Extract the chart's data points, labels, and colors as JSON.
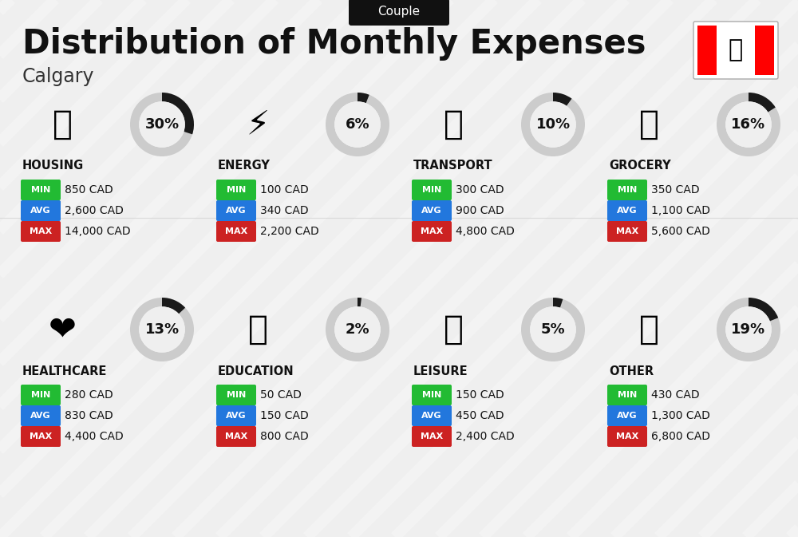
{
  "title": "Distribution of Monthly Expenses",
  "subtitle": "Calgary",
  "tag": "Couple",
  "bg_color": "#efefef",
  "categories": [
    {
      "name": "HOUSING",
      "percent": 30,
      "min": "850 CAD",
      "avg": "2,600 CAD",
      "max": "14,000 CAD",
      "col": 0,
      "row": 0
    },
    {
      "name": "ENERGY",
      "percent": 6,
      "min": "100 CAD",
      "avg": "340 CAD",
      "max": "2,200 CAD",
      "col": 1,
      "row": 0
    },
    {
      "name": "TRANSPORT",
      "percent": 10,
      "min": "300 CAD",
      "avg": "900 CAD",
      "max": "4,800 CAD",
      "col": 2,
      "row": 0
    },
    {
      "name": "GROCERY",
      "percent": 16,
      "min": "350 CAD",
      "avg": "1,100 CAD",
      "max": "5,600 CAD",
      "col": 3,
      "row": 0
    },
    {
      "name": "HEALTHCARE",
      "percent": 13,
      "min": "280 CAD",
      "avg": "830 CAD",
      "max": "4,400 CAD",
      "col": 0,
      "row": 1
    },
    {
      "name": "EDUCATION",
      "percent": 2,
      "min": "50 CAD",
      "avg": "150 CAD",
      "max": "800 CAD",
      "col": 1,
      "row": 1
    },
    {
      "name": "LEISURE",
      "percent": 5,
      "min": "150 CAD",
      "avg": "450 CAD",
      "max": "2,400 CAD",
      "col": 2,
      "row": 1
    },
    {
      "name": "OTHER",
      "percent": 19,
      "min": "430 CAD",
      "avg": "1,300 CAD",
      "max": "6,800 CAD",
      "col": 3,
      "row": 1
    }
  ],
  "color_min": "#22bb33",
  "color_avg": "#2277dd",
  "color_max": "#cc2222",
  "color_dark": "#111111",
  "color_circle_bg": "#cccccc",
  "color_circle_fg": "#1a1a1a",
  "canada_red": "#FF0000",
  "stripe_color": "#ffffff",
  "tag_bg": "#111111",
  "tag_fg": "#ffffff",
  "divider_color": "#cccccc"
}
